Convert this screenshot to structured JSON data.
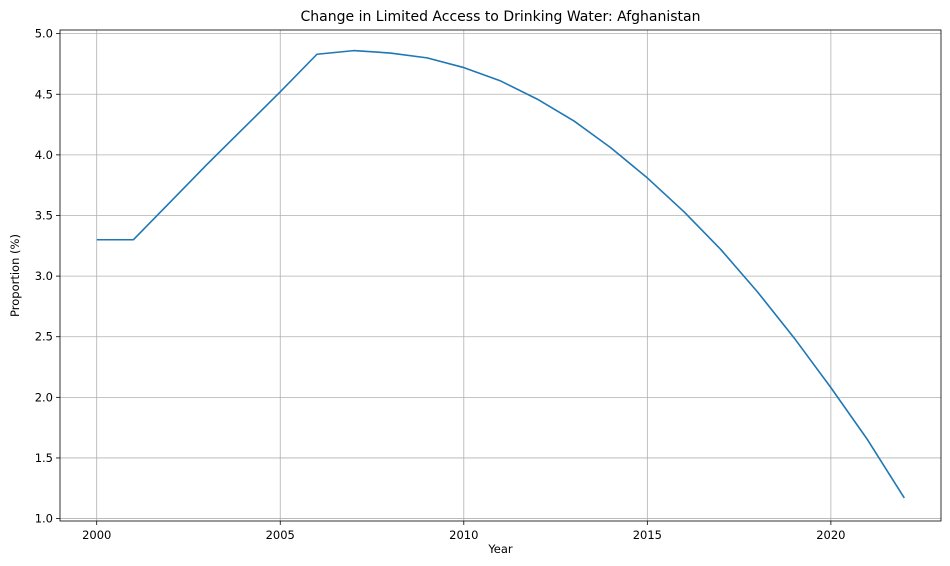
{
  "chart_data": {
    "type": "line",
    "title": "Change in Limited Access to Drinking Water: Afghanistan",
    "xlabel": "Year",
    "ylabel": "Proportion (%)",
    "xlim": [
      1999,
      2023
    ],
    "ylim": [
      0.98,
      5.03
    ],
    "xticks": [
      2000,
      2005,
      2010,
      2015,
      2020
    ],
    "yticks": [
      1.0,
      1.5,
      2.0,
      2.5,
      3.0,
      3.5,
      4.0,
      4.5,
      5.0
    ],
    "ytick_labels": [
      "1.0",
      "1.5",
      "2.0",
      "2.5",
      "3.0",
      "3.5",
      "4.0",
      "4.5",
      "5.0"
    ],
    "grid": true,
    "series": [
      {
        "color": "#1f77b4",
        "x": [
          2000,
          2001,
          2002,
          2003,
          2004,
          2005,
          2006,
          2007,
          2008,
          2009,
          2010,
          2011,
          2012,
          2013,
          2014,
          2015,
          2016,
          2017,
          2018,
          2019,
          2020,
          2021,
          2022
        ],
        "values": [
          3.3,
          3.3,
          3.61,
          3.92,
          4.22,
          4.52,
          4.83,
          4.86,
          4.84,
          4.8,
          4.72,
          4.61,
          4.46,
          4.28,
          4.06,
          3.81,
          3.53,
          3.22,
          2.87,
          2.49,
          2.08,
          1.65,
          1.17
        ]
      }
    ]
  }
}
